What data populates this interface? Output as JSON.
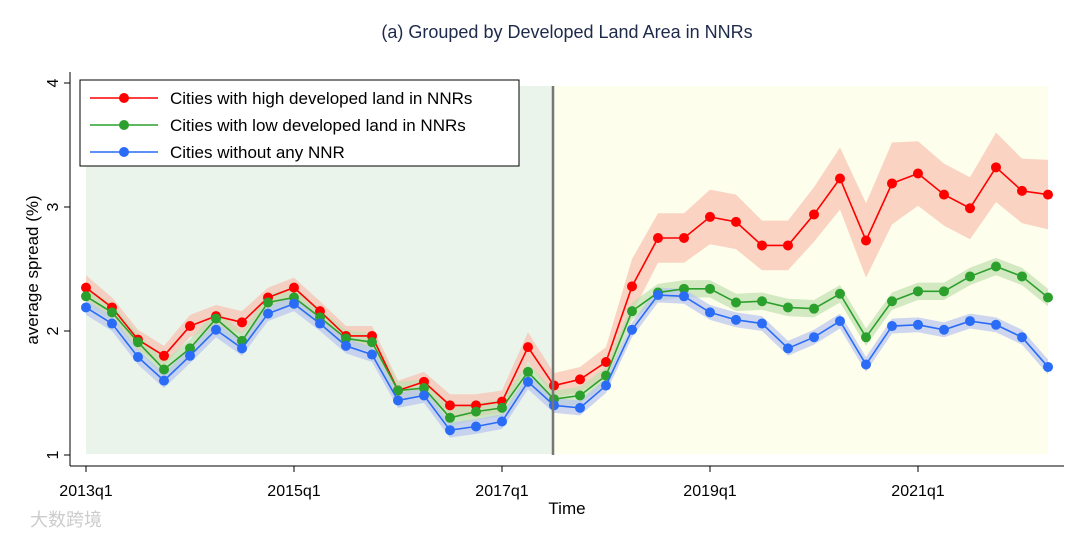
{
  "chart_data": {
    "type": "line",
    "title": "(a) Grouped by Developed Land Area in NNRs",
    "xlabel": "Time",
    "ylabel": "average spread (%)",
    "ylim": [
      1,
      4
    ],
    "yticks": [
      "1",
      "2",
      "3",
      "4"
    ],
    "xticks": [
      {
        "index": 0,
        "label": "2013q1"
      },
      {
        "index": 8,
        "label": "2015q1"
      },
      {
        "index": 16,
        "label": "2017q1"
      },
      {
        "index": 24,
        "label": "2019q1"
      },
      {
        "index": 32,
        "label": "2021q1"
      }
    ],
    "x": [
      "2013q1",
      "2013q2",
      "2013q3",
      "2013q4",
      "2014q1",
      "2014q2",
      "2014q3",
      "2014q4",
      "2015q1",
      "2015q2",
      "2015q3",
      "2015q4",
      "2016q1",
      "2016q2",
      "2016q3",
      "2016q4",
      "2017q1",
      "2017q2",
      "2017q3",
      "2017q4",
      "2018q1",
      "2018q2",
      "2018q3",
      "2018q4",
      "2019q1",
      "2019q2",
      "2019q3",
      "2019q4",
      "2020q1",
      "2020q2",
      "2020q3",
      "2020q4",
      "2021q1",
      "2021q2",
      "2021q3",
      "2021q4",
      "2022q1",
      "2022q2"
    ],
    "treatment_index": 18,
    "periods": [
      {
        "name": "pre",
        "from": 0,
        "to": 18,
        "color": "#eaf4ea"
      },
      {
        "name": "post",
        "from": 18,
        "to": 37,
        "color": "#fefeec"
      }
    ],
    "legend_position": "top-left",
    "series": [
      {
        "name": "Cities with high developed land in NNRs",
        "color": "#ff0000",
        "band": "#f8c0b0",
        "values": [
          2.35,
          2.19,
          1.93,
          1.8,
          2.04,
          2.12,
          2.07,
          2.27,
          2.35,
          2.16,
          1.96,
          1.96,
          1.52,
          1.59,
          1.4,
          1.4,
          1.43,
          1.87,
          1.56,
          1.61,
          1.75,
          2.36,
          2.75,
          2.75,
          2.92,
          2.88,
          2.69,
          2.69,
          2.94,
          3.23,
          2.73,
          3.19,
          3.27,
          3.1,
          2.99,
          3.32,
          3.13,
          3.1
        ],
        "ci": [
          0.1,
          0.08,
          0.08,
          0.08,
          0.09,
          0.09,
          0.09,
          0.08,
          0.08,
          0.08,
          0.08,
          0.08,
          0.08,
          0.08,
          0.09,
          0.09,
          0.09,
          0.12,
          0.1,
          0.1,
          0.12,
          0.22,
          0.2,
          0.2,
          0.22,
          0.22,
          0.2,
          0.2,
          0.22,
          0.25,
          0.3,
          0.33,
          0.26,
          0.25,
          0.25,
          0.28,
          0.26,
          0.28
        ]
      },
      {
        "name": "Cities with low developed land in NNRs",
        "color": "#2ca02c",
        "band": "#bfe0b0",
        "values": [
          2.28,
          2.15,
          1.91,
          1.69,
          1.86,
          2.1,
          1.92,
          2.23,
          2.27,
          2.11,
          1.94,
          1.91,
          1.52,
          1.54,
          1.3,
          1.35,
          1.38,
          1.67,
          1.45,
          1.48,
          1.64,
          2.16,
          2.31,
          2.34,
          2.34,
          2.23,
          2.24,
          2.19,
          2.18,
          2.3,
          1.95,
          2.24,
          2.32,
          2.32,
          2.44,
          2.52,
          2.44,
          2.27
        ],
        "ci": 0.07
      },
      {
        "name": "Cities without any NNR",
        "color": "#2a6cf6",
        "band": "#b8c4ef",
        "values": [
          2.19,
          2.06,
          1.79,
          1.6,
          1.8,
          2.01,
          1.86,
          2.14,
          2.22,
          2.06,
          1.88,
          1.81,
          1.44,
          1.48,
          1.2,
          1.23,
          1.27,
          1.59,
          1.4,
          1.38,
          1.56,
          2.01,
          2.29,
          2.28,
          2.15,
          2.09,
          2.06,
          1.86,
          1.95,
          2.08,
          1.73,
          2.04,
          2.05,
          2.01,
          2.08,
          2.05,
          1.95,
          1.71
        ],
        "ci": 0.06
      }
    ]
  },
  "watermark": "大数跨境"
}
